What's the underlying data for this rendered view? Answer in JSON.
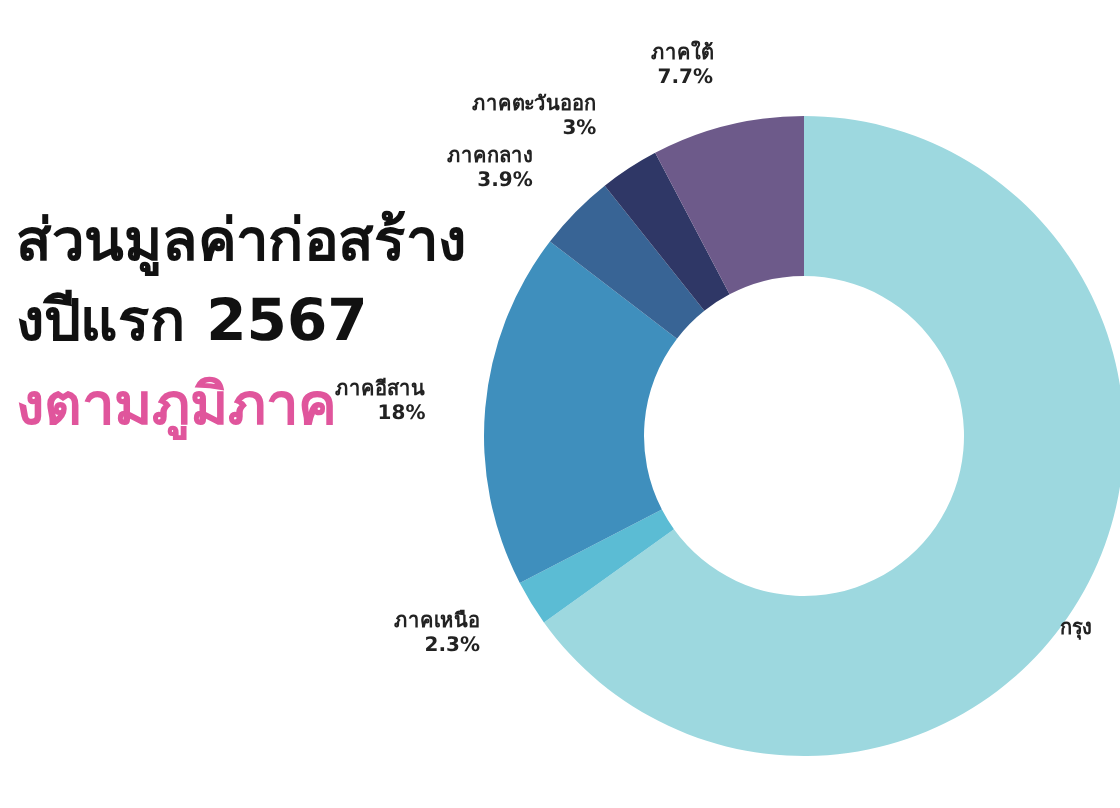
{
  "chart_data": {
    "type": "donut",
    "title": "ส่วนมูลค่าก่อสร้าง\nงปีแรก 2567",
    "subtitle": "งตามภูมิภาค",
    "categories": [
      "กรุง",
      "ภาคเหนือ",
      "ภาคอีสาน",
      "ภาคกลาง",
      "ภาคตะวันออก",
      "ภาคใต้"
    ],
    "values": [
      65.1,
      2.3,
      18,
      3.9,
      3,
      7.7
    ],
    "value_labels": [
      null,
      "2.3%",
      "18%",
      "3.9%",
      "3%",
      "7.7%"
    ],
    "colors": [
      "#9dd8df",
      "#5bbcd4",
      "#3f8fbd",
      "#386495",
      "#2f3766",
      "#6d5a8a"
    ]
  }
}
